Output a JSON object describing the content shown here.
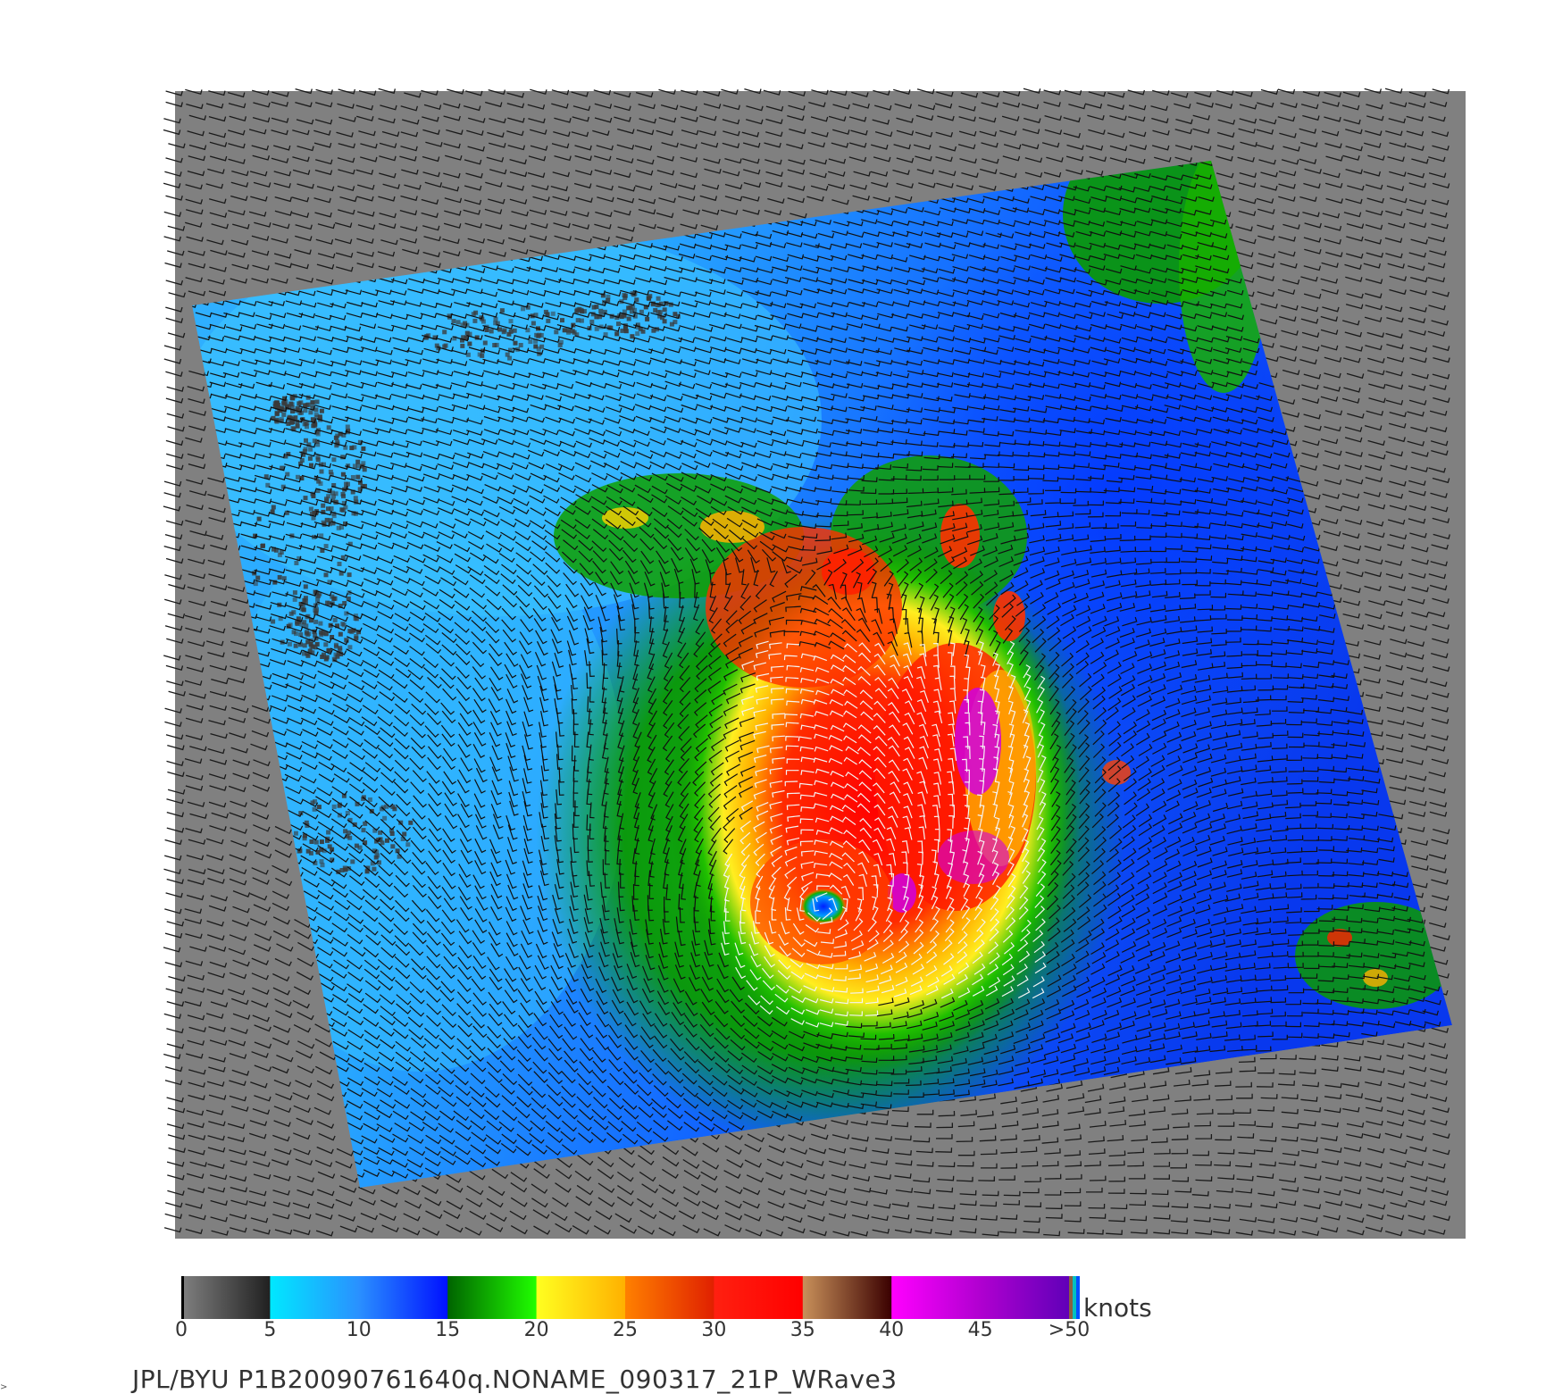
{
  "map": {
    "background_color": "#808080",
    "legend_units": "knots",
    "caption": "JPL/BYU  P1B20090761640q.NONAME_090317_21P_WRave3",
    "storm_eye": "center of swath"
  },
  "colorbar": {
    "tick_labels": [
      "0",
      "5",
      "10",
      "15",
      "20",
      "25",
      "30",
      "35",
      "40",
      "45",
      ">50"
    ],
    "tick_values": [
      0,
      5,
      10,
      15,
      20,
      25,
      30,
      35,
      40,
      45,
      50
    ],
    "segments": [
      {
        "from": 0,
        "to": 5,
        "colors": [
          "#808080",
          "#202020"
        ]
      },
      {
        "from": 5,
        "to": 10,
        "colors": [
          "#00e8ff",
          "#2a90ff"
        ]
      },
      {
        "from": 10,
        "to": 15,
        "colors": [
          "#2a90ff",
          "#0010ff"
        ]
      },
      {
        "from": 15,
        "to": 20,
        "colors": [
          "#006400",
          "#20ff00"
        ]
      },
      {
        "from": 20,
        "to": 25,
        "colors": [
          "#ffff20",
          "#ffb000"
        ]
      },
      {
        "from": 25,
        "to": 30,
        "colors": [
          "#ff8000",
          "#e02000"
        ]
      },
      {
        "from": 30,
        "to": 35,
        "colors": [
          "#ff2010",
          "#ff0000"
        ]
      },
      {
        "from": 35,
        "to": 40,
        "colors": [
          "#c8905a",
          "#3a0000"
        ]
      },
      {
        "from": 40,
        "to": 45,
        "colors": [
          "#ff00ff",
          "#b000d0"
        ]
      },
      {
        "from": 45,
        "to": 50,
        "colors": [
          "#b000d0",
          "#6000b8"
        ]
      }
    ],
    "end_stripes": [
      "#8a6040",
      "#00c0c0",
      "#0050ff"
    ]
  }
}
